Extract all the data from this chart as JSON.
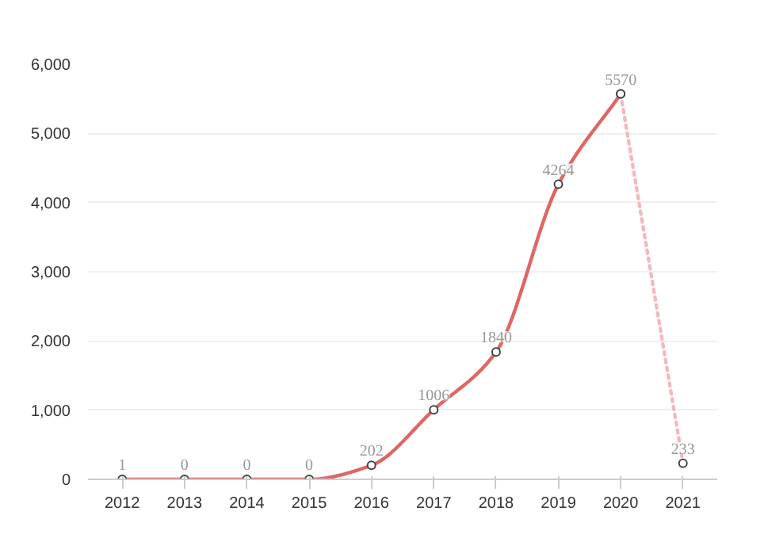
{
  "chart_data": {
    "type": "line",
    "categories": [
      "2012",
      "2013",
      "2014",
      "2015",
      "2016",
      "2017",
      "2018",
      "2019",
      "2020",
      "2021"
    ],
    "series": [
      {
        "color": "#e06666",
        "line_style": "solid",
        "values": [
          1,
          0,
          0,
          0,
          202,
          1006,
          1840,
          4264,
          5570,
          null
        ],
        "value_labels": [
          "1",
          "0",
          "0",
          "0",
          "202",
          "1006",
          "1840",
          "4264",
          "5570",
          null
        ]
      },
      {
        "color": "#f4b8c0",
        "line_style": "dotted",
        "values": [
          null,
          null,
          null,
          null,
          null,
          null,
          null,
          null,
          5570,
          233
        ],
        "value_labels": [
          null,
          null,
          null,
          null,
          null,
          null,
          null,
          null,
          null,
          "233"
        ]
      }
    ],
    "ylim": [
      0,
      6000
    ],
    "yticks": [
      {
        "value": 0,
        "label": "0"
      },
      {
        "value": 1000,
        "label": "1,000"
      },
      {
        "value": 2000,
        "label": "2,000"
      },
      {
        "value": 3000,
        "label": "3,000"
      },
      {
        "value": 4000,
        "label": "4,000"
      },
      {
        "value": 5000,
        "label": "5,000"
      },
      {
        "value": 6000,
        "label": "6,000"
      }
    ],
    "grid": "y",
    "marker": "circle"
  }
}
